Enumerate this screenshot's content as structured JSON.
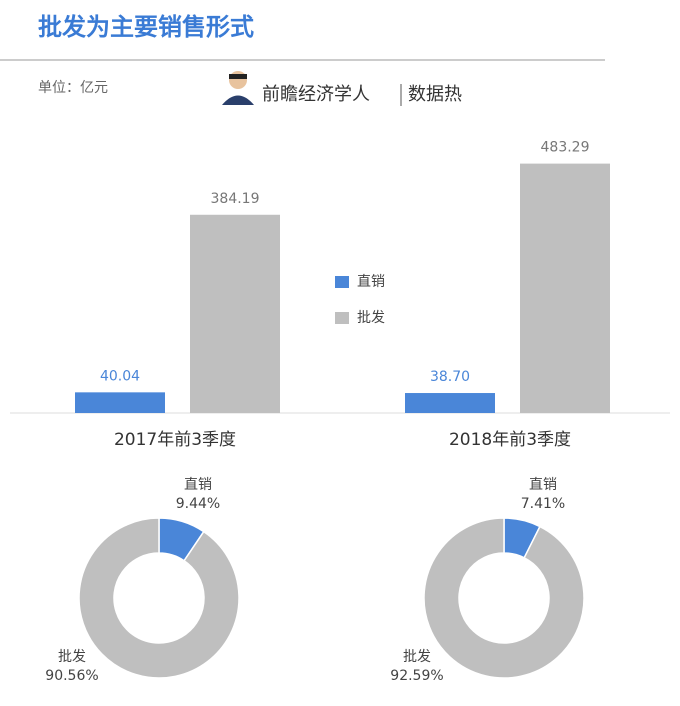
{
  "title": "批发为主要销售形式",
  "unit": "单位：亿元",
  "brand": "前瞻经济学人",
  "brand_tag": "数据热",
  "chart_data": [
    {
      "type": "bar",
      "categories": [
        "2017年前3季度",
        "2018年前3季度"
      ],
      "series": [
        {
          "name": "直销",
          "color": "#4a86d8",
          "values": [
            40.04,
            38.7
          ],
          "value_labels": [
            "40.04",
            "38.70"
          ]
        },
        {
          "name": "批发",
          "color": "#bfbfbf",
          "values": [
            384.19,
            483.29
          ]
        }
      ],
      "ylim": [
        0,
        500
      ]
    },
    {
      "type": "pie",
      "categories": [
        "直销",
        "批发"
      ],
      "values": [
        9.44,
        90.56
      ],
      "value_labels": [
        "9.44%",
        "90.56%"
      ],
      "colors": [
        "#4a86d8",
        "#bfbfbf"
      ]
    },
    {
      "type": "pie",
      "categories": [
        "直销",
        "批发"
      ],
      "values": [
        7.41,
        92.59
      ],
      "value_labels": [
        "7.41%",
        "92.59%"
      ],
      "colors": [
        "#4a86d8",
        "#bfbfbf"
      ]
    }
  ]
}
